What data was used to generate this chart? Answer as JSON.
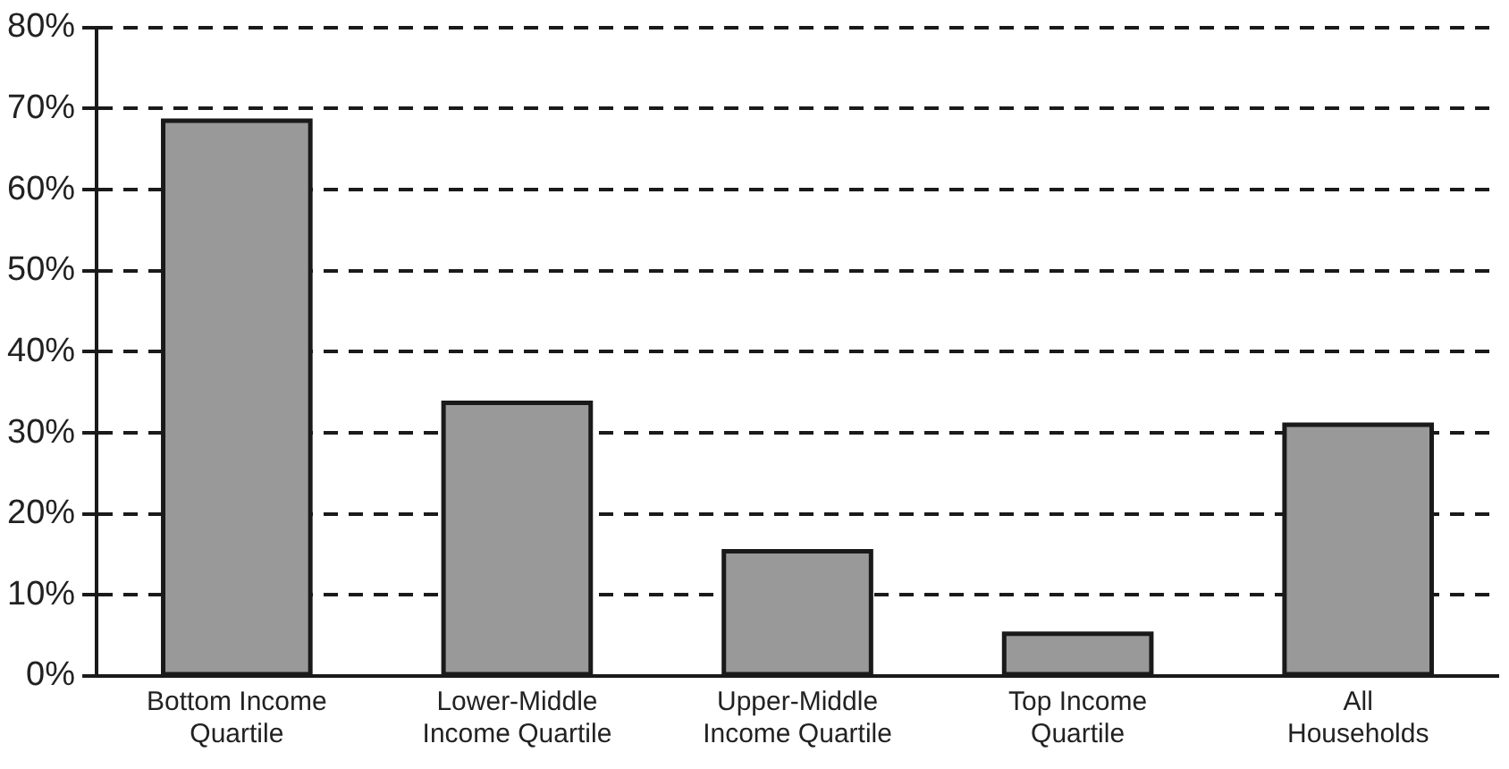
{
  "chart_data": {
    "type": "bar",
    "categories": [
      "Bottom Income Quartile",
      "Lower-Middle Income Quartile",
      "Upper-Middle Income Quartile",
      "Top Income Quartile",
      "All Households"
    ],
    "values": [
      68.5,
      33.7,
      15.4,
      5.2,
      31.0
    ],
    "color": "#999999",
    "ylim": [
      0,
      80
    ],
    "yticks": [
      {
        "value": 0,
        "label": "0%"
      },
      {
        "value": 10,
        "label": "10%"
      },
      {
        "value": 20,
        "label": "20%"
      },
      {
        "value": 30,
        "label": "30%"
      },
      {
        "value": 40,
        "label": "40%"
      },
      {
        "value": 50,
        "label": "50%"
      },
      {
        "value": 60,
        "label": "60%"
      },
      {
        "value": 70,
        "label": "70%"
      },
      {
        "value": 80,
        "label": "80%"
      }
    ],
    "grid": "y",
    "legend": false,
    "line_style": "dashed"
  }
}
